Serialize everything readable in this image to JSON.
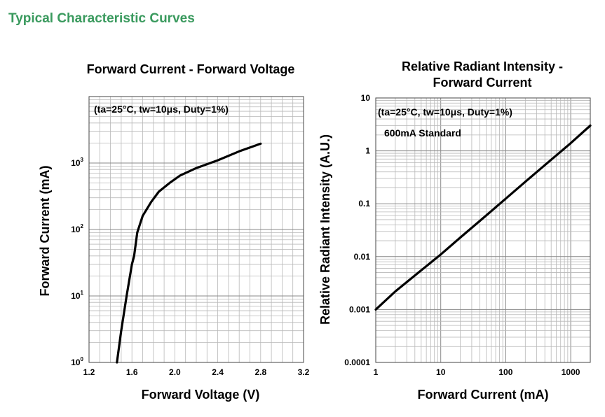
{
  "page": {
    "title": "Typical Characteristic Curves",
    "title_color": "#3a9a5e"
  },
  "chart_data": [
    {
      "type": "line",
      "title": "Forward Current - Forward Voltage",
      "xlabel": "Forward Voltage (V)",
      "ylabel": "Forward Current (mA)",
      "xscale": "linear",
      "yscale": "log",
      "xlim": [
        1.2,
        3.2
      ],
      "ylim": [
        1,
        10000
      ],
      "xticks": [
        1.2,
        1.6,
        2.0,
        2.4,
        2.8,
        3.2
      ],
      "xtick_labels": [
        "1.2",
        "1.6",
        "2.0",
        "2.4",
        "2.8",
        "3.2"
      ],
      "yticks": [
        {
          "base": "10",
          "exp": "0"
        },
        {
          "base": "10",
          "exp": "1"
        },
        {
          "base": "10",
          "exp": "2"
        },
        {
          "base": "10",
          "exp": "3"
        }
      ],
      "grid": true,
      "annotations": [
        "(ta=25°C, tw=10μs, Duty=1%)"
      ],
      "series": [
        {
          "x": [
            1.46,
            1.5,
            1.55,
            1.6,
            1.62,
            1.65,
            1.7,
            1.78,
            1.85,
            1.95,
            2.05,
            2.2,
            2.4,
            2.6,
            2.8
          ],
          "y": [
            1,
            3,
            10,
            30,
            40,
            90,
            160,
            260,
            370,
            500,
            650,
            840,
            1100,
            1500,
            1950
          ]
        }
      ],
      "line_color": "#000000"
    },
    {
      "type": "line",
      "title": "Relative Radiant Intensity - Forward Current",
      "title_lines": [
        "Relative Radiant Intensity -",
        "Forward Current"
      ],
      "xlabel": "Forward Current (mA)",
      "ylabel": "Relative Radiant Intensity (A.U.)",
      "xscale": "log",
      "yscale": "log",
      "xlim": [
        1,
        2000
      ],
      "ylim": [
        0.0001,
        10
      ],
      "xticks": [
        1,
        10,
        100,
        1000
      ],
      "xtick_labels": [
        "1",
        "10",
        "100",
        "1000"
      ],
      "yticks": [
        0.0001,
        0.001,
        0.01,
        0.1,
        1,
        10
      ],
      "ytick_labels": [
        "0.0001",
        "0.001",
        "0.01",
        "0.1",
        "1",
        "10"
      ],
      "grid": true,
      "annotations": [
        "(ta=25°C, tw=10μs, Duty=1%)",
        "600mA Standard"
      ],
      "series": [
        {
          "x": [
            1,
            2,
            5,
            10,
            20,
            50,
            100,
            200,
            500,
            1000,
            2000
          ],
          "y": [
            0.001,
            0.0022,
            0.0055,
            0.011,
            0.023,
            0.06,
            0.125,
            0.26,
            0.68,
            1.4,
            3.0
          ]
        }
      ],
      "line_color": "#000000"
    }
  ]
}
